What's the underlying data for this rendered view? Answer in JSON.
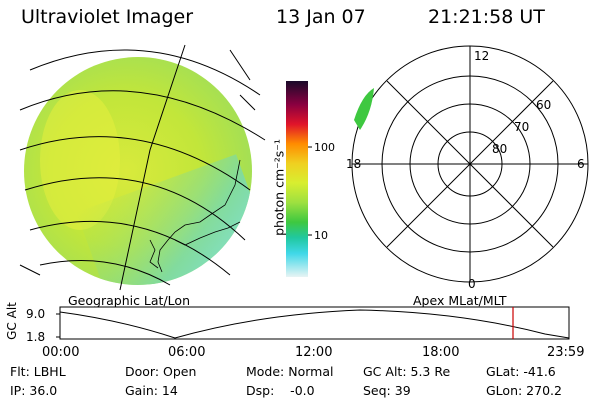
{
  "header": {
    "instrument": "Ultraviolet Imager",
    "date": "13 Jan 07",
    "time": "21:21:58 UT"
  },
  "colorbar": {
    "unit_label": "photon cm⁻²s⁻¹",
    "ticks": [
      "100",
      "10"
    ]
  },
  "polar_plot": {
    "mlt_labels": [
      "12",
      "18",
      "6",
      "0"
    ],
    "lat_labels": [
      "60",
      "70",
      "80"
    ]
  },
  "panel_labels": {
    "left": "Geographic Lat/Lon",
    "right": "Apex MLat/MLT"
  },
  "orbit_plot": {
    "ylabel": "GC Alt",
    "y_ticks": [
      "9.0",
      "1.8"
    ],
    "x_ticks": [
      "00:00",
      "06:00",
      "12:00",
      "18:00",
      "23:59"
    ],
    "marker_time": "21:21:58",
    "marker_color": "#cc0000"
  },
  "info": {
    "filter": "Flt: LBHL",
    "ip": "IP: 36.0",
    "door": "Door: Open",
    "gain": "Gain: 14",
    "mode": "Mode: Normal",
    "dsp": "Dsp:    -0.0",
    "gc_alt": "GC Alt: 5.3 Re",
    "seq": "Seq: 39",
    "glat": "GLat: -41.6",
    "glon": "GLon: 270.2"
  },
  "colors": {
    "disk_main": "#c8e83a",
    "disk_yellow": "#e8ee3a",
    "disk_cyan": "#7ee0d8"
  }
}
